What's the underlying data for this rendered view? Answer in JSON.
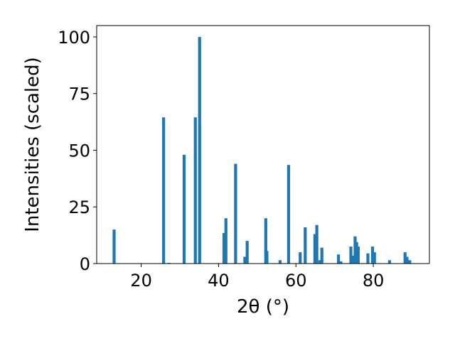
{
  "chart_data": {
    "type": "bar",
    "xlabel": "2θ (°)",
    "ylabel": "Intensities (scaled)",
    "bar_color": "#1f77b4",
    "xlim": [
      8.5,
      94.5
    ],
    "ylim": [
      0,
      105
    ],
    "xticks": [
      {
        "value": 20,
        "label": "20"
      },
      {
        "value": 40,
        "label": "40"
      },
      {
        "value": 60,
        "label": "60"
      },
      {
        "value": 80,
        "label": "80"
      }
    ],
    "yticks": [
      {
        "value": 0,
        "label": "0"
      },
      {
        "value": 25,
        "label": "25"
      },
      {
        "value": 50,
        "label": "50"
      },
      {
        "value": 75,
        "label": "75"
      },
      {
        "value": 100,
        "label": "100"
      }
    ],
    "grid": false,
    "x": [
      13.0,
      25.8,
      27.2,
      31.1,
      34.0,
      35.1,
      41.4,
      41.9,
      44.4,
      46.8,
      47.4,
      52.2,
      52.5,
      55.9,
      58.1,
      61.1,
      62.4,
      64.9,
      65.4,
      66.2,
      66.7,
      71.0,
      71.6,
      74.2,
      74.6,
      75.3,
      75.7,
      76.1,
      78.6,
      79.8,
      80.3,
      84.2,
      88.2,
      88.7,
      89.4
    ],
    "values": [
      15,
      64.5,
      0.3,
      48,
      64.5,
      100,
      13.5,
      20,
      44,
      3,
      10,
      20,
      5.5,
      1.5,
      43.5,
      5,
      16,
      13,
      17,
      1.5,
      7,
      4,
      1,
      7.5,
      3.5,
      12,
      9.5,
      7.5,
      4.5,
      7.5,
      5,
      1.5,
      5,
      3,
      1.5
    ]
  }
}
